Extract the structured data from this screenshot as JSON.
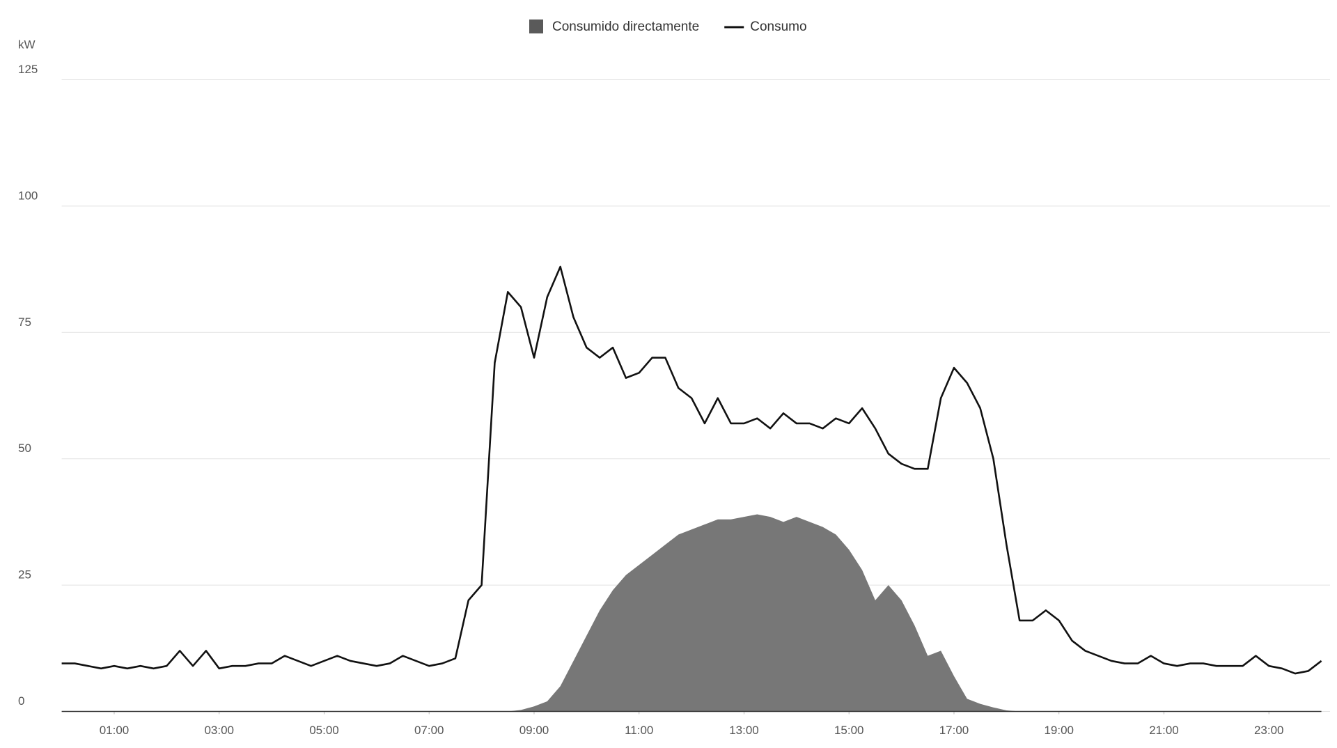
{
  "chart_data": {
    "type": "line",
    "y_label": "kW",
    "x": [
      0,
      0.25,
      0.5,
      0.75,
      1,
      1.25,
      1.5,
      1.75,
      2,
      2.25,
      2.5,
      2.75,
      3,
      3.25,
      3.5,
      3.75,
      4,
      4.25,
      4.5,
      4.75,
      5,
      5.25,
      5.5,
      5.75,
      6,
      6.25,
      6.5,
      6.75,
      7,
      7.25,
      7.5,
      7.75,
      8,
      8.25,
      8.5,
      8.75,
      9,
      9.25,
      9.5,
      9.75,
      10,
      10.25,
      10.5,
      10.75,
      11,
      11.25,
      11.5,
      11.75,
      12,
      12.25,
      12.5,
      12.75,
      13,
      13.25,
      13.5,
      13.75,
      14,
      14.25,
      14.5,
      14.75,
      15,
      15.25,
      15.5,
      15.75,
      16,
      16.25,
      16.5,
      16.75,
      17,
      17.25,
      17.5,
      17.75,
      18,
      18.25,
      18.5,
      18.75,
      19,
      19.25,
      19.5,
      19.75,
      20,
      20.25,
      20.5,
      20.75,
      21,
      21.25,
      21.5,
      21.75,
      22,
      22.25,
      22.5,
      22.75,
      23,
      23.25,
      23.5,
      23.75,
      24
    ],
    "series": [
      {
        "name": "Consumido directamente",
        "kind": "area",
        "color": "#777777",
        "legend_color": "#5a5a5a",
        "values": [
          0,
          0,
          0,
          0,
          0,
          0,
          0,
          0,
          0,
          0,
          0,
          0,
          0,
          0,
          0,
          0,
          0,
          0,
          0,
          0,
          0,
          0,
          0,
          0,
          0,
          0,
          0,
          0,
          0,
          0,
          0,
          0,
          0,
          0,
          0,
          0.3,
          1,
          2,
          5,
          10,
          15,
          20,
          24,
          27,
          29,
          31,
          33,
          35,
          36,
          37,
          38,
          38,
          38.5,
          39,
          38.5,
          37.5,
          38.5,
          37.5,
          36.5,
          35,
          32,
          28,
          22,
          25,
          22,
          17,
          11,
          12,
          7,
          2.5,
          1.5,
          0.8,
          0.2,
          0,
          0,
          0,
          0,
          0,
          0,
          0,
          0,
          0,
          0,
          0,
          0,
          0,
          0,
          0,
          0,
          0,
          0,
          0,
          0,
          0,
          0,
          0,
          0
        ]
      },
      {
        "name": "Consumo",
        "kind": "line",
        "color": "#111111",
        "values": [
          9.5,
          9.5,
          9,
          8.5,
          9,
          8.5,
          9,
          8.5,
          9,
          12,
          9,
          12,
          8.5,
          9,
          9,
          9.5,
          9.5,
          11,
          10,
          9,
          10,
          11,
          10,
          9.5,
          9,
          9.5,
          11,
          10,
          9,
          9.5,
          10.5,
          22,
          25,
          69,
          83,
          80,
          70,
          82,
          88,
          78,
          72,
          70,
          72,
          66,
          67,
          70,
          70,
          64,
          62,
          57,
          62,
          57,
          57,
          58,
          56,
          59,
          57,
          57,
          56,
          58,
          57,
          60,
          56,
          51,
          49,
          48,
          48,
          62,
          68,
          65,
          60,
          50,
          33,
          18,
          18,
          20,
          18,
          14,
          12,
          11,
          10,
          9.5,
          9.5,
          11,
          9.5,
          9,
          9.5,
          9.5,
          9,
          9,
          9,
          11,
          9,
          8.5,
          7.5,
          8,
          10
        ]
      }
    ],
    "ylim": [
      0,
      125
    ],
    "yticks": [
      0,
      25,
      50,
      75,
      100,
      125
    ],
    "xlim": [
      0,
      24
    ],
    "xticks": [
      {
        "value": 1,
        "label": "01:00"
      },
      {
        "value": 3,
        "label": "03:00"
      },
      {
        "value": 5,
        "label": "05:00"
      },
      {
        "value": 7,
        "label": "07:00"
      },
      {
        "value": 9,
        "label": "09:00"
      },
      {
        "value": 11,
        "label": "11:00"
      },
      {
        "value": 13,
        "label": "13:00"
      },
      {
        "value": 15,
        "label": "15:00"
      },
      {
        "value": 17,
        "label": "17:00"
      },
      {
        "value": 19,
        "label": "19:00"
      },
      {
        "value": 21,
        "label": "21:00"
      },
      {
        "value": 23,
        "label": "23:00"
      }
    ],
    "grid": true,
    "legend": "top"
  }
}
